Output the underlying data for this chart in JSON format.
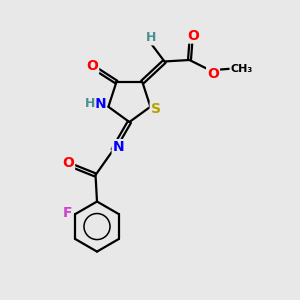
{
  "bg_color": "#e8e8e8",
  "atom_colors": {
    "C": "#000000",
    "H": "#4a9090",
    "N": "#0000ff",
    "O": "#ff0000",
    "S": "#b8a000",
    "F": "#cc44cc"
  },
  "bond_color": "#000000",
  "bond_width": 1.6,
  "font_size": 10
}
